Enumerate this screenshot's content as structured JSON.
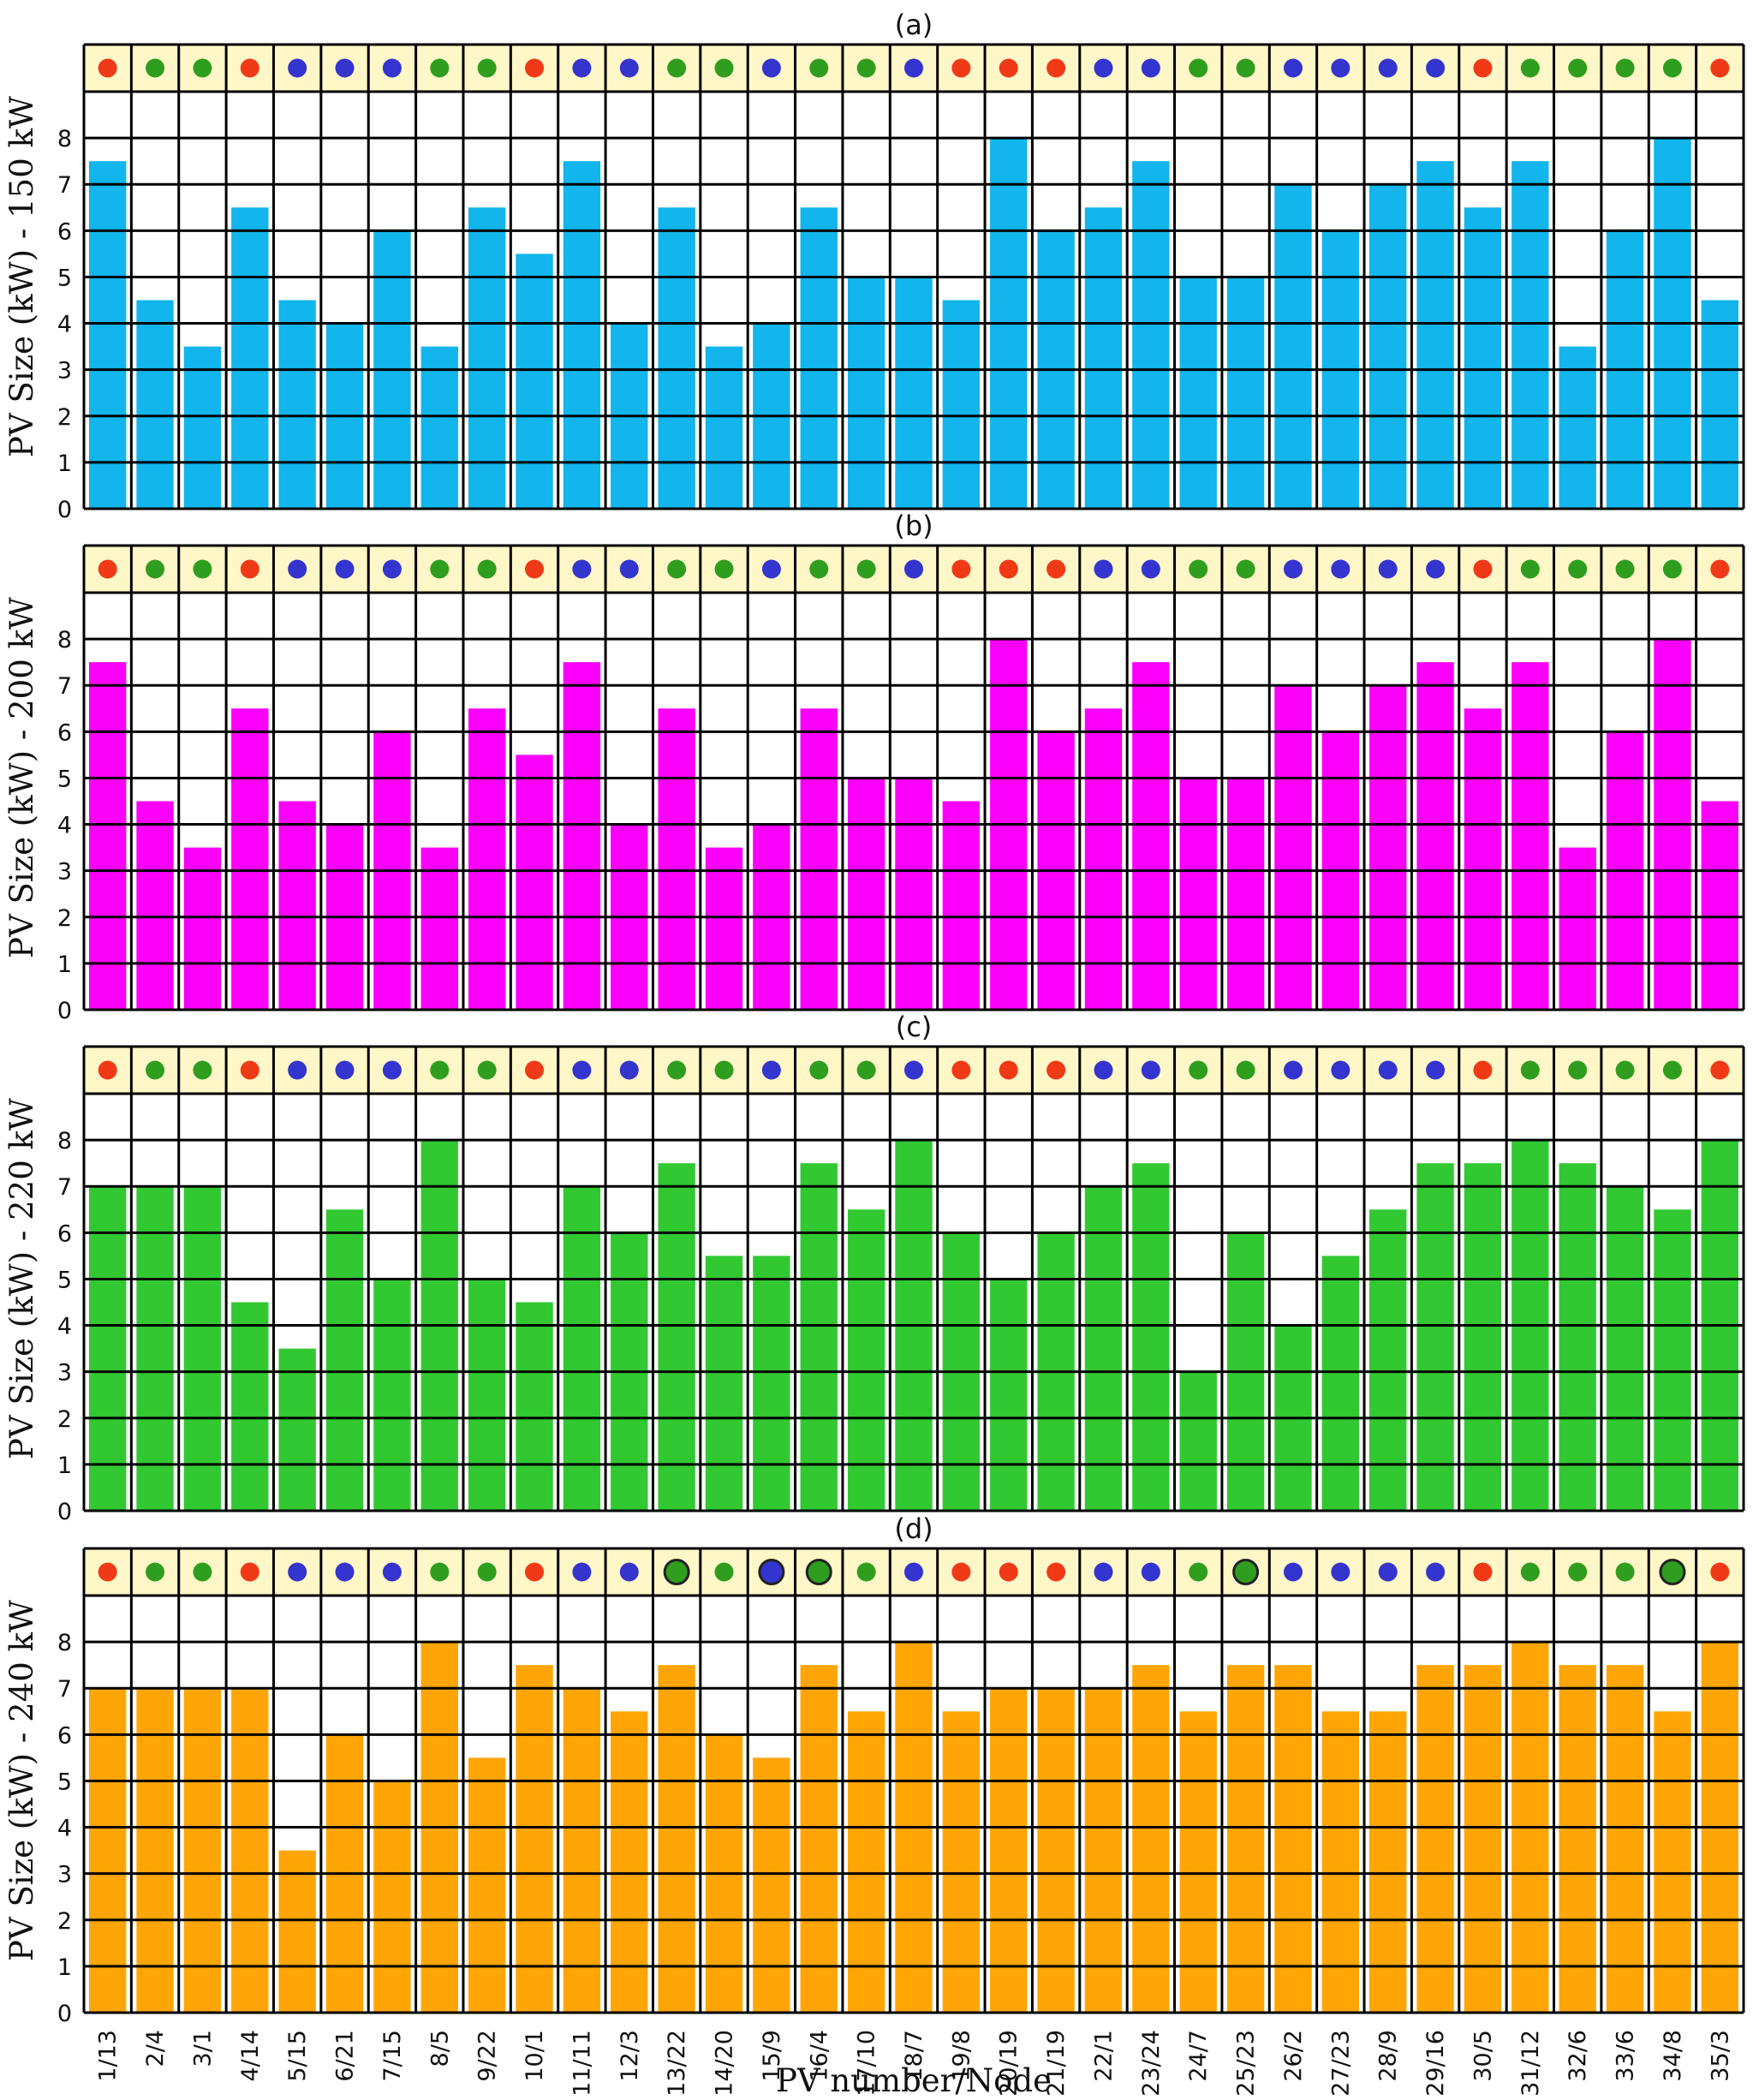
{
  "chart_data": {
    "type": "bar",
    "xlabel": "PV number/Node",
    "categories": [
      "1/13",
      "2/4",
      "3/1",
      "4/14",
      "5/15",
      "6/21",
      "7/15",
      "8/5",
      "9/22",
      "10/1",
      "11/11",
      "12/3",
      "13/22",
      "14/20",
      "15/9",
      "16/4",
      "17/10",
      "18/7",
      "19/8",
      "20/19",
      "21/19",
      "22/1",
      "23/24",
      "24/7",
      "25/23",
      "26/2",
      "27/23",
      "28/9",
      "29/16",
      "30/5",
      "31/12",
      "32/6",
      "33/6",
      "34/8",
      "35/3"
    ],
    "ylim": [
      0,
      9
    ],
    "yticks": [
      "0",
      "1",
      "2",
      "3",
      "4",
      "5",
      "6",
      "7",
      "8"
    ],
    "grid": true,
    "phase_colors": {
      "red": "#f03a17",
      "green": "#2f9e1f",
      "blue": "#3434cf"
    },
    "phases": [
      "red",
      "green",
      "green",
      "red",
      "blue",
      "blue",
      "blue",
      "green",
      "green",
      "red",
      "blue",
      "blue",
      "green",
      "green",
      "blue",
      "green",
      "green",
      "blue",
      "red",
      "red",
      "red",
      "blue",
      "blue",
      "green",
      "green",
      "blue",
      "blue",
      "blue",
      "blue",
      "red",
      "green",
      "green",
      "green",
      "green",
      "red"
    ],
    "panels": [
      {
        "title": "(a)",
        "ylabel": "PV Size (kW) - 150 kW",
        "color": "#12b5ec",
        "values": [
          7.5,
          4.5,
          3.5,
          6.5,
          4.5,
          4,
          6,
          3.5,
          6.5,
          5.5,
          7.5,
          4,
          6.5,
          3.5,
          4,
          6.5,
          5,
          5,
          4.5,
          8,
          6,
          6.5,
          7.5,
          5,
          5,
          7,
          6,
          7,
          7.5,
          6.5,
          7.5,
          3.5,
          6,
          8,
          4.5
        ],
        "outlined": []
      },
      {
        "title": "(b)",
        "ylabel": "PV Size (kW) - 200 kW",
        "color": "#fa00fa",
        "values": [
          7.5,
          4.5,
          3.5,
          6.5,
          4.5,
          4,
          6,
          3.5,
          6.5,
          5.5,
          7.5,
          4,
          6.5,
          3.5,
          4,
          6.5,
          5,
          5,
          4.5,
          8,
          6,
          6.5,
          7.5,
          5,
          5,
          7,
          6,
          7,
          7.5,
          6.5,
          7.5,
          3.5,
          6,
          8,
          4.5
        ],
        "outlined": []
      },
      {
        "title": "(c)",
        "ylabel": "PV Size (kW) - 220 kW",
        "color": "#32c832",
        "values": [
          7,
          7,
          7,
          4.5,
          3.5,
          6.5,
          5,
          8,
          5,
          4.5,
          7,
          6,
          7.5,
          5.5,
          5.5,
          7.5,
          6.5,
          8,
          6,
          5,
          6,
          7,
          7.5,
          3,
          6,
          4,
          5.5,
          6.5,
          7.5,
          7.5,
          8,
          7.5,
          7,
          6.5,
          8
        ],
        "outlined": []
      },
      {
        "title": "(d)",
        "ylabel": "PV Size (kW) - 240 kW",
        "color": "#ffa505",
        "values": [
          7,
          7,
          7,
          7,
          3.5,
          6,
          5,
          8,
          5.5,
          7.5,
          7,
          6.5,
          7.5,
          6,
          5.5,
          7.5,
          6.5,
          8,
          6.5,
          7,
          7,
          7,
          7.5,
          6.5,
          7.5,
          7.5,
          6.5,
          6.5,
          7.5,
          7.5,
          8,
          7.5,
          7.5,
          6.5,
          8
        ],
        "outlined": [
          12,
          14,
          15,
          24,
          33
        ]
      }
    ]
  }
}
